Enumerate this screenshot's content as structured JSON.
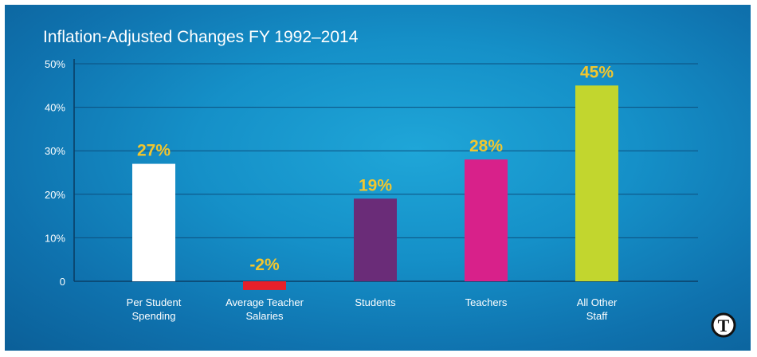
{
  "chart_data": {
    "type": "bar",
    "title": "Inflation-Adjusted Changes FY 1992–2014",
    "categories": [
      [
        "Per Student",
        "Spending"
      ],
      [
        "Average Teacher",
        "Salaries"
      ],
      [
        "Students"
      ],
      [
        "Teachers"
      ],
      [
        "All Other",
        "Staff"
      ]
    ],
    "values": [
      27,
      -2,
      19,
      28,
      45
    ],
    "value_labels": [
      "27%",
      "-2%",
      "19%",
      "28%",
      "45%"
    ],
    "colors": [
      "#ffffff",
      "#e8202a",
      "#6a2c78",
      "#d8218a",
      "#c2d62e"
    ],
    "ylim": [
      0,
      50
    ],
    "yticks": [
      0,
      10,
      20,
      30,
      40,
      50
    ],
    "ytick_labels": [
      "0",
      "10%",
      "20%",
      "30%",
      "40%",
      "50%"
    ],
    "grid": true,
    "label_color": "#f2c62e",
    "background": "#1590c8"
  },
  "logo": {
    "name": "news-publisher-seal-icon",
    "text": "T"
  }
}
